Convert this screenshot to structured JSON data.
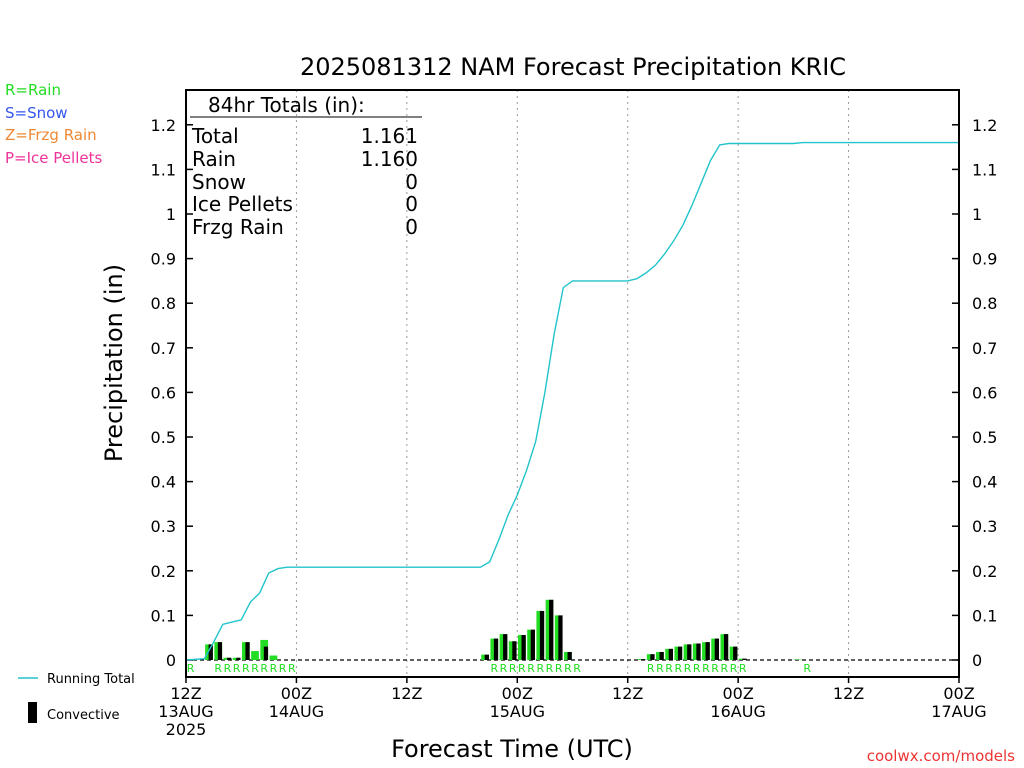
{
  "chart_data": {
    "type": "bar",
    "title": "2025081312 NAM Forecast Precipitation KRIC",
    "ylabel": "Precipitation (in)",
    "xlabel": "Forecast Time (UTC)",
    "ylim": [
      0,
      1.27
    ],
    "xlim_hours": [
      0,
      84
    ],
    "yticks": [
      "0",
      "0.1",
      "0.2",
      "0.3",
      "0.4",
      "0.5",
      "0.6",
      "0.7",
      "0.8",
      "0.9",
      "1",
      "1.1",
      "1.2"
    ],
    "xticks": [
      {
        "hour": 0,
        "lines": [
          "12Z",
          "13AUG",
          "2025"
        ]
      },
      {
        "hour": 12,
        "lines": [
          "00Z",
          "14AUG"
        ]
      },
      {
        "hour": 24,
        "lines": [
          "12Z"
        ]
      },
      {
        "hour": 36,
        "lines": [
          "00Z",
          "15AUG"
        ]
      },
      {
        "hour": 48,
        "lines": [
          "12Z"
        ]
      },
      {
        "hour": 60,
        "lines": [
          "00Z",
          "16AUG"
        ]
      },
      {
        "hour": 72,
        "lines": [
          "12Z"
        ]
      },
      {
        "hour": 84,
        "lines": [
          "00Z",
          "17AUG"
        ]
      }
    ],
    "grid_hours": [
      12,
      24,
      36,
      48,
      60,
      72
    ],
    "legend_types": [
      {
        "label": "R=Rain",
        "color": "#22dd22"
      },
      {
        "label": "S=Snow",
        "color": "#3355ee"
      },
      {
        "label": "Z=Frzg Rain",
        "color": "#ee8833"
      },
      {
        "label": "P=Ice Pellets",
        "color": "#ee3399"
      }
    ],
    "totals": {
      "header": "84hr Totals (in):",
      "rows": [
        {
          "label": "Total",
          "value": "1.161"
        },
        {
          "label": "Rain",
          "value": "1.160"
        },
        {
          "label": "Snow",
          "value": "0"
        },
        {
          "label": "Ice Pellets",
          "value": "0"
        },
        {
          "label": "Frzg Rain",
          "value": "0"
        }
      ]
    },
    "series": [
      {
        "name": "Running Total",
        "type": "line",
        "color": "#22c4cc",
        "points": [
          [
            0,
            0
          ],
          [
            2,
            0.003
          ],
          [
            3,
            0.04
          ],
          [
            4,
            0.08
          ],
          [
            5,
            0.085
          ],
          [
            6,
            0.09
          ],
          [
            7,
            0.13
          ],
          [
            8,
            0.15
          ],
          [
            9,
            0.195
          ],
          [
            10,
            0.205
          ],
          [
            11,
            0.208
          ],
          [
            12,
            0.208
          ],
          [
            24,
            0.208
          ],
          [
            32,
            0.208
          ],
          [
            33,
            0.22
          ],
          [
            34,
            0.27
          ],
          [
            35,
            0.325
          ],
          [
            36,
            0.37
          ],
          [
            37,
            0.425
          ],
          [
            38,
            0.49
          ],
          [
            39,
            0.6
          ],
          [
            40,
            0.73
          ],
          [
            41,
            0.835
          ],
          [
            42,
            0.85
          ],
          [
            48,
            0.85
          ],
          [
            49,
            0.855
          ],
          [
            50,
            0.868
          ],
          [
            51,
            0.885
          ],
          [
            52,
            0.91
          ],
          [
            53,
            0.94
          ],
          [
            54,
            0.975
          ],
          [
            55,
            1.02
          ],
          [
            56,
            1.07
          ],
          [
            57,
            1.12
          ],
          [
            58,
            1.155
          ],
          [
            59,
            1.158
          ],
          [
            60,
            1.158
          ],
          [
            66,
            1.158
          ],
          [
            67,
            1.16
          ],
          [
            84,
            1.16
          ]
        ]
      },
      {
        "name": "Rain",
        "type": "bar",
        "color": "#22dd22",
        "bars": [
          [
            3,
            0.035
          ],
          [
            4,
            0.04
          ],
          [
            5,
            0.005
          ],
          [
            6,
            0.005
          ],
          [
            7,
            0.04
          ],
          [
            8,
            0.02
          ],
          [
            9,
            0.045
          ],
          [
            10,
            0.01
          ],
          [
            33,
            0.012
          ],
          [
            34,
            0.048
          ],
          [
            35,
            0.058
          ],
          [
            36,
            0.042
          ],
          [
            37,
            0.056
          ],
          [
            38,
            0.068
          ],
          [
            39,
            0.11
          ],
          [
            40,
            0.135
          ],
          [
            41,
            0.1
          ],
          [
            42,
            0.018
          ],
          [
            50,
            0.002
          ],
          [
            51,
            0.013
          ],
          [
            52,
            0.018
          ],
          [
            53,
            0.025
          ],
          [
            54,
            0.03
          ],
          [
            55,
            0.035
          ],
          [
            56,
            0.037
          ],
          [
            57,
            0.04
          ],
          [
            58,
            0.048
          ],
          [
            59,
            0.058
          ],
          [
            60,
            0.03
          ],
          [
            61,
            0.003
          ],
          [
            67,
            0.001
          ]
        ]
      },
      {
        "name": "Convective",
        "type": "bar",
        "color": "#000000",
        "bars": [
          [
            3,
            0.035
          ],
          [
            4,
            0.04
          ],
          [
            5,
            0.005
          ],
          [
            6,
            0.005
          ],
          [
            7,
            0.04
          ],
          [
            8,
            0.0
          ],
          [
            9,
            0.03
          ],
          [
            10,
            0.0
          ],
          [
            33,
            0.012
          ],
          [
            34,
            0.048
          ],
          [
            35,
            0.058
          ],
          [
            36,
            0.042
          ],
          [
            37,
            0.056
          ],
          [
            38,
            0.068
          ],
          [
            39,
            0.11
          ],
          [
            40,
            0.135
          ],
          [
            41,
            0.1
          ],
          [
            42,
            0.018
          ],
          [
            50,
            0.002
          ],
          [
            51,
            0.013
          ],
          [
            52,
            0.018
          ],
          [
            53,
            0.025
          ],
          [
            54,
            0.03
          ],
          [
            55,
            0.035
          ],
          [
            56,
            0.037
          ],
          [
            57,
            0.04
          ],
          [
            58,
            0.048
          ],
          [
            59,
            0.058
          ],
          [
            60,
            0.03
          ],
          [
            61,
            0.003
          ],
          [
            67,
            0.0
          ]
        ]
      }
    ],
    "type_markers": {
      "symbol": "R",
      "hours": [
        1,
        4,
        5,
        6,
        7,
        8,
        9,
        10,
        11,
        12,
        34,
        35,
        36,
        37,
        38,
        39,
        40,
        41,
        42,
        43,
        51,
        52,
        53,
        54,
        55,
        56,
        57,
        58,
        59,
        60,
        61,
        68
      ]
    },
    "bottom_legend": {
      "line_label": "Running Total",
      "bar_label": "Convective"
    },
    "credit": "coolwx.com/models"
  }
}
